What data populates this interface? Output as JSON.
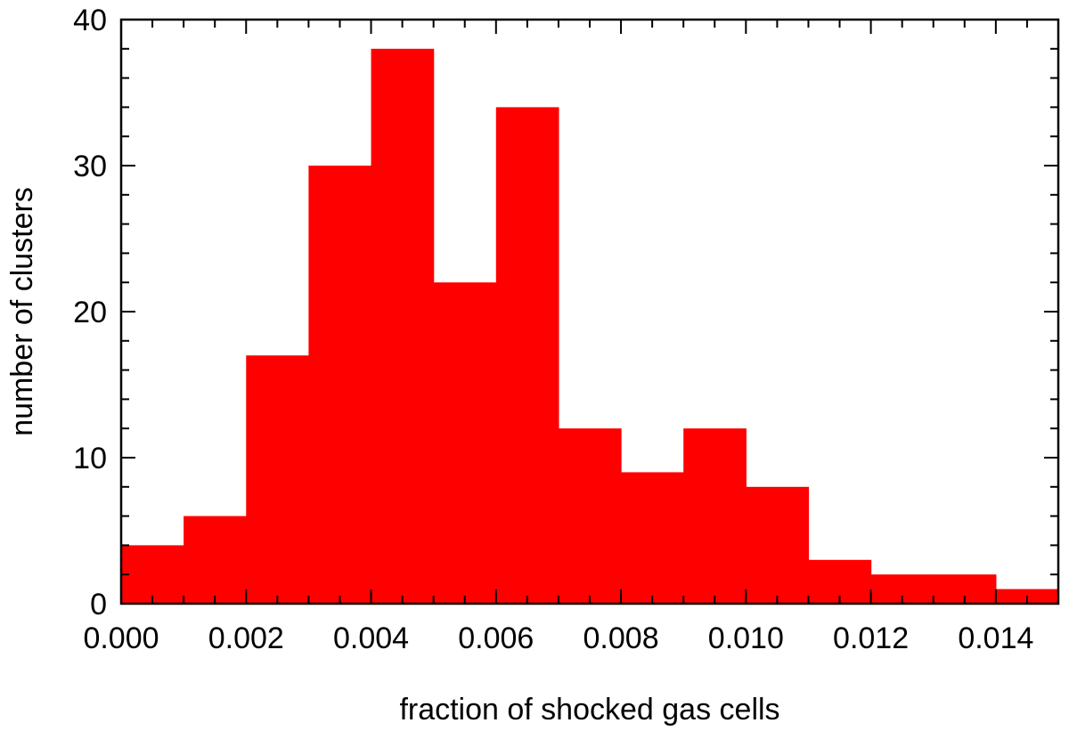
{
  "chart_data": {
    "type": "bar",
    "title": "",
    "xlabel": "fraction of shocked gas cells",
    "ylabel": "number of clusters",
    "bin_edges": [
      0.0,
      0.001,
      0.002,
      0.003,
      0.004,
      0.005,
      0.006,
      0.007,
      0.008,
      0.009,
      0.01,
      0.011,
      0.012,
      0.013,
      0.014,
      0.015
    ],
    "values": [
      4,
      6,
      17,
      30,
      38,
      22,
      34,
      12,
      9,
      12,
      8,
      3,
      2,
      2,
      1
    ],
    "xlim": [
      0.0,
      0.015
    ],
    "ylim": [
      0,
      40
    ],
    "x_ticks": [
      "0.000",
      "0.002",
      "0.004",
      "0.006",
      "0.008",
      "0.010",
      "0.012",
      "0.014"
    ],
    "y_ticks": [
      "0",
      "10",
      "20",
      "30",
      "40"
    ],
    "bar_color": "#ff0000",
    "grid": false,
    "legend": "none"
  }
}
